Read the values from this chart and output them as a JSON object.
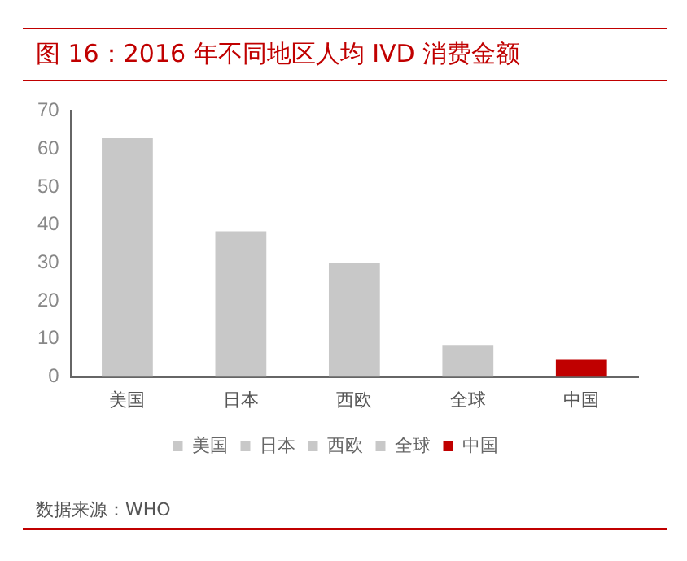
{
  "chart_data": {
    "type": "bar",
    "title": "图 16：2016 年不同地区人均 IVD 消费金额",
    "categories": [
      "美国",
      "日本",
      "西欧",
      "全球",
      "中国"
    ],
    "series": [
      {
        "name": "美国",
        "color": "#c8c8c8",
        "values": [
          62.8,
          null,
          null,
          null,
          null
        ]
      },
      {
        "name": "日本",
        "color": "#c8c8c8",
        "values": [
          null,
          38.3,
          null,
          null,
          null
        ]
      },
      {
        "name": "西欧",
        "color": "#c8c8c8",
        "values": [
          null,
          null,
          30.0,
          null,
          null
        ]
      },
      {
        "name": "全球",
        "color": "#c8c8c8",
        "values": [
          null,
          null,
          null,
          8.4,
          null
        ]
      },
      {
        "name": "中国",
        "color": "#c00000",
        "values": [
          null,
          null,
          null,
          null,
          4.5
        ]
      }
    ],
    "ylim": [
      0,
      70
    ],
    "yticks": [
      0,
      10,
      20,
      30,
      40,
      50,
      60,
      70
    ],
    "grid": false,
    "legend": "bottom",
    "annotations": [
      "数据来源：WHO"
    ]
  }
}
